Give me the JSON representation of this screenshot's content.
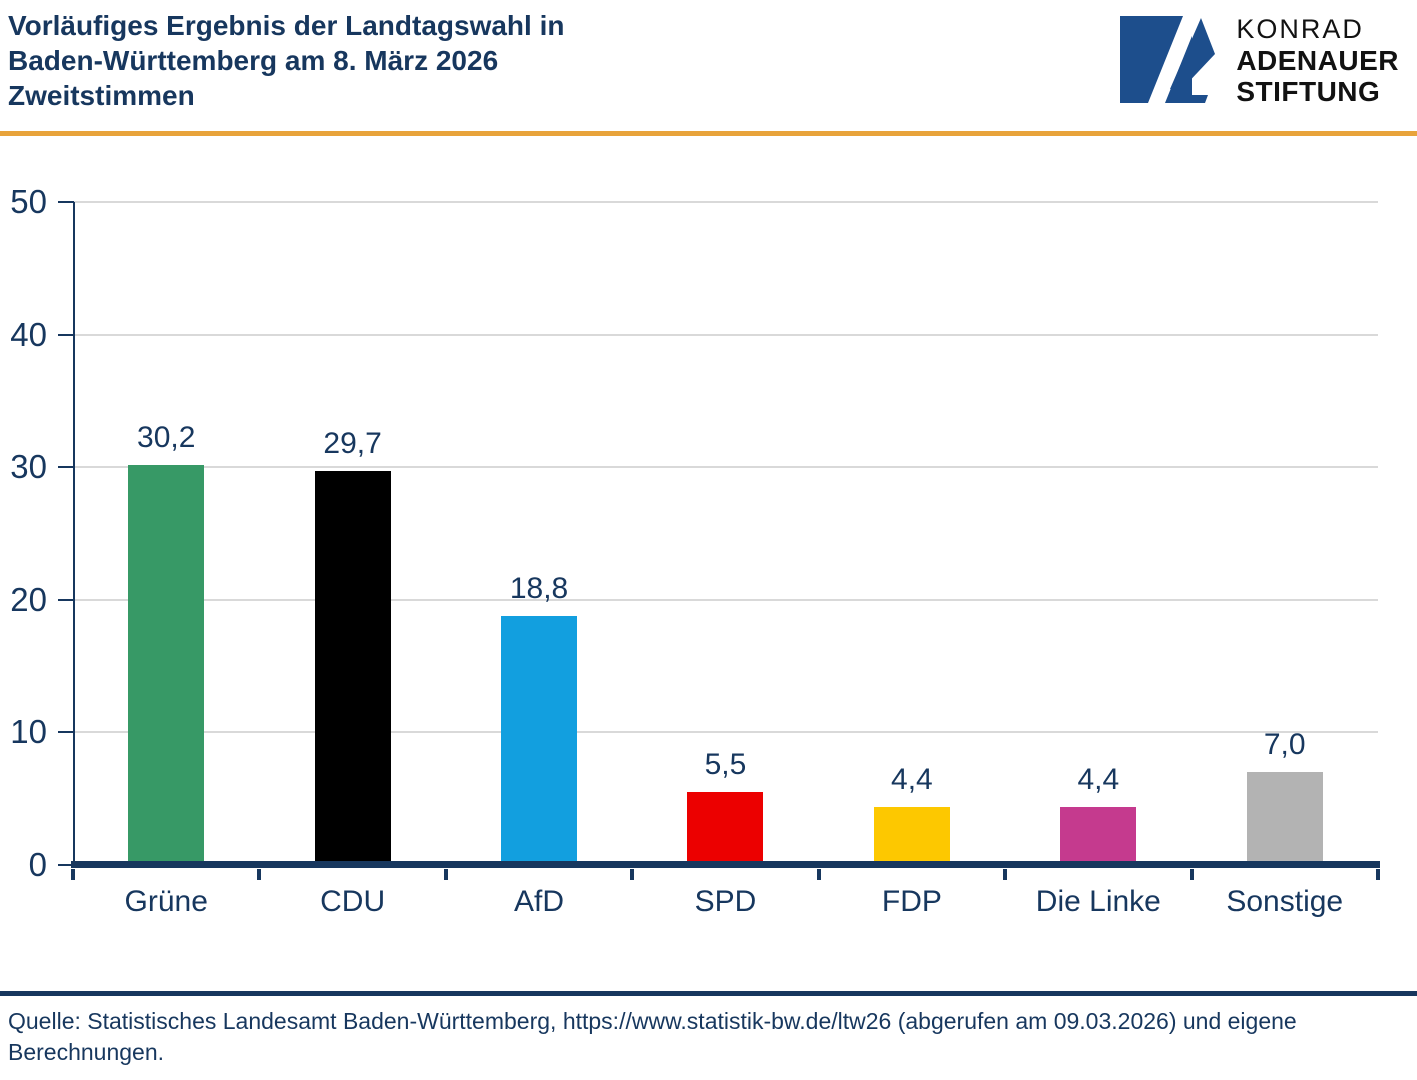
{
  "header": {
    "title_lines": [
      "Vorläufiges Ergebnis der Landtagswahl in",
      "Baden-Württemberg am 8. März 2026",
      "Zweitstimmen"
    ]
  },
  "logo": {
    "line1": "KONRAD",
    "line2": "ADENAUER",
    "line3": "STIFTUNG",
    "mark_color": "#1D4E8C"
  },
  "chart_data": {
    "type": "bar",
    "title": "Vorläufiges Ergebnis der Landtagswahl in Baden-Württemberg am 8. März 2026 – Zweitstimmen",
    "categories": [
      "Grüne",
      "CDU",
      "AfD",
      "SPD",
      "FDP",
      "Die Linke",
      "Sonstige"
    ],
    "values": [
      30.2,
      29.7,
      18.8,
      5.5,
      4.4,
      4.4,
      7.0
    ],
    "value_labels": [
      "30,2",
      "29,7",
      "18,8",
      "5,5",
      "4,4",
      "4,4",
      "7,0"
    ],
    "bar_colors": [
      "#379966",
      "#000000",
      "#129FDF",
      "#EC0000",
      "#FDC800",
      "#C53A8E",
      "#B3B3B3"
    ],
    "xlabel": "",
    "ylabel": "",
    "ylim": [
      0,
      50
    ],
    "yticks": [
      0,
      10,
      20,
      30,
      40,
      50
    ],
    "grid": "horizontal-only",
    "legend": "none"
  },
  "footer": {
    "source": "Quelle: Statistisches Landesamt Baden-Württemberg, https://www.statistik-bw.de/ltw26 (abgerufen am 09.03.2026) und eigene Berechnungen."
  },
  "colors": {
    "text_navy": "#17375E",
    "divider_orange": "#E8A33B",
    "grid_gray": "#D9D9D9",
    "logo_blue": "#1D4E8C"
  }
}
